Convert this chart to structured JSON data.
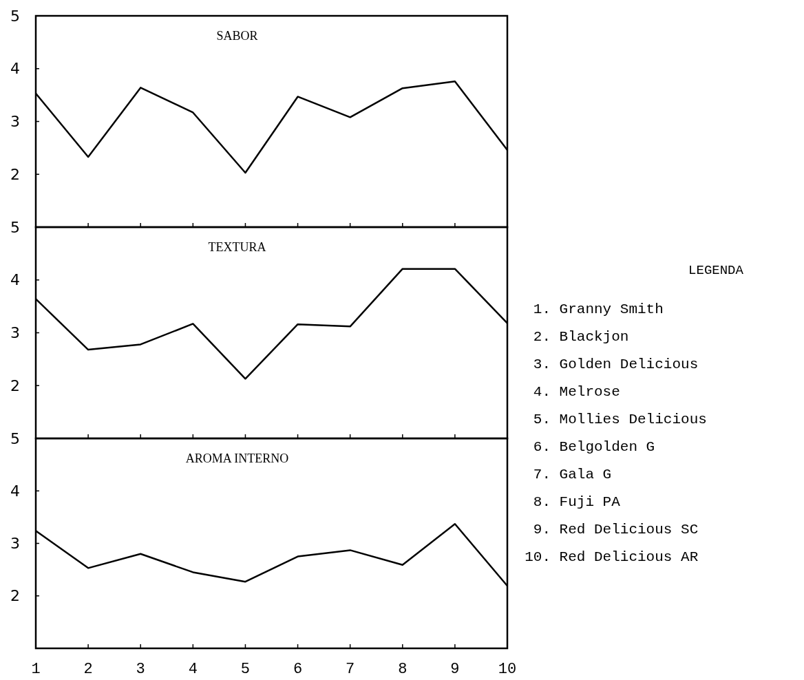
{
  "chart_data": [
    {
      "type": "line",
      "title": "SABOR",
      "x": [
        1,
        2,
        3,
        4,
        5,
        6,
        7,
        8,
        9,
        10
      ],
      "values": [
        3.53,
        2.33,
        3.64,
        3.17,
        2.03,
        3.47,
        3.08,
        3.63,
        3.76,
        2.46
      ],
      "color": "#000000",
      "xlim": [
        1,
        10
      ],
      "xticks": [
        1,
        2,
        3,
        4,
        5,
        6,
        7,
        8,
        9,
        10
      ],
      "ylim": [
        1,
        5
      ],
      "yticks": [
        2,
        3,
        4,
        5
      ],
      "tick_labels": "y"
    },
    {
      "type": "line",
      "title": "TEXTURA",
      "x": [
        1,
        2,
        3,
        4,
        5,
        6,
        7,
        8,
        9,
        10
      ],
      "values": [
        3.64,
        2.68,
        2.78,
        3.17,
        2.13,
        3.16,
        3.12,
        4.21,
        4.21,
        3.18
      ],
      "color": "#000000",
      "xlim": [
        1,
        10
      ],
      "xticks": [
        1,
        2,
        3,
        4,
        5,
        6,
        7,
        8,
        9,
        10
      ],
      "ylim": [
        1,
        5
      ],
      "yticks": [
        2,
        3,
        4,
        5
      ],
      "tick_labels": "y"
    },
    {
      "type": "line",
      "title": "AROMA INTERNO",
      "x": [
        1,
        2,
        3,
        4,
        5,
        6,
        7,
        8,
        9,
        10
      ],
      "values": [
        3.24,
        2.53,
        2.8,
        2.45,
        2.27,
        2.75,
        2.87,
        2.59,
        3.37,
        2.19
      ],
      "color": "#000000",
      "xlim": [
        1,
        10
      ],
      "xticks": [
        1,
        2,
        3,
        4,
        5,
        6,
        7,
        8,
        9,
        10
      ],
      "ylim": [
        1,
        5
      ],
      "yticks": [
        2,
        3,
        4,
        5
      ]
    },
    {
      "type": "other",
      "title": "LEGENDA",
      "annotations": [
        "1. Granny Smith",
        "2. Blackjon",
        "3. Golden Delicious",
        "4. Melrose",
        "5. Mollies Delicious",
        "6. Belgolden G",
        "7. Gala G",
        "8. Fuji PA",
        "9. Red Delicious SC",
        "10. Red Delicious AR"
      ]
    }
  ]
}
